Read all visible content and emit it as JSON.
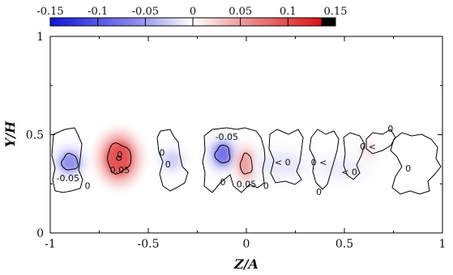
{
  "chart_data": {
    "type": "heatmap",
    "title": "",
    "xlabel": "Z/A",
    "ylabel": "Y/H",
    "xlim": [
      -1,
      1
    ],
    "ylim": [
      0,
      1
    ],
    "x_ticks": [
      -1,
      -0.5,
      0,
      0.5,
      1
    ],
    "x_tick_labels": [
      "-1",
      "-0.5",
      "0",
      "0.5",
      "1"
    ],
    "y_ticks": [
      0,
      0.5,
      1
    ],
    "y_tick_labels": [
      "0",
      "0.5",
      "1"
    ],
    "colorbar": {
      "range": [
        -0.15,
        0.15
      ],
      "ticks": [
        -0.15,
        -0.1,
        -0.05,
        0,
        0.05,
        0.1,
        0.15
      ],
      "tick_labels": [
        "-0.15",
        "-0.1",
        "-0.05",
        "0",
        "0.05",
        "0.1",
        "0.15"
      ],
      "color_min": "#1414dc",
      "color_mid": "#ffffff",
      "color_max": "#dc1414",
      "color_end": "#000000",
      "placement": "top"
    },
    "structures": [
      {
        "z": -0.9,
        "y": 0.36,
        "value": -0.07,
        "rz": 0.055,
        "ry": 0.055
      },
      {
        "z": -0.65,
        "y": 0.38,
        "value": 0.11,
        "rz": 0.08,
        "ry": 0.1
      },
      {
        "z": -0.38,
        "y": 0.37,
        "value": -0.03,
        "rz": 0.05,
        "ry": 0.05
      },
      {
        "z": -0.12,
        "y": 0.4,
        "value": -0.09,
        "rz": 0.05,
        "ry": 0.06
      },
      {
        "z": 0.0,
        "y": 0.35,
        "value": 0.07,
        "rz": 0.04,
        "ry": 0.07
      },
      {
        "z": 0.18,
        "y": 0.35,
        "value": -0.015,
        "rz": 0.12,
        "ry": 0.06
      },
      {
        "z": 0.48,
        "y": 0.33,
        "value": -0.012,
        "rz": 0.12,
        "ry": 0.05
      },
      {
        "z": 0.62,
        "y": 0.42,
        "value": 0.015,
        "rz": 0.05,
        "ry": 0.04
      }
    ],
    "contour_labels": [
      {
        "text": "-0.05",
        "z": -0.91,
        "y": 0.28
      },
      {
        "text": "0",
        "z": -0.81,
        "y": 0.24
      },
      {
        "text": "0.05",
        "z": -0.645,
        "y": 0.32
      },
      {
        "text": "0",
        "z": -0.645,
        "y": 0.4
      },
      {
        "text": "0",
        "z": -0.43,
        "y": 0.41
      },
      {
        "text": "0",
        "z": -0.4,
        "y": 0.35
      },
      {
        "text": "-0.05",
        "z": -0.1,
        "y": 0.49
      },
      {
        "text": "0",
        "z": -0.12,
        "y": 0.26
      },
      {
        "text": "0",
        "z": 0.1,
        "y": 0.24
      },
      {
        "text": "0.05",
        "z": 0.0,
        "y": 0.25
      },
      {
        "text": "< 0",
        "z": 0.185,
        "y": 0.36
      },
      {
        "text": "0 <",
        "z": 0.37,
        "y": 0.36
      },
      {
        "text": "< 0",
        "z": 0.525,
        "y": 0.31
      },
      {
        "text": "0 <",
        "z": 0.62,
        "y": 0.44
      },
      {
        "text": "0",
        "z": 0.37,
        "y": 0.21
      },
      {
        "text": "0",
        "z": 0.735,
        "y": 0.53
      },
      {
        "text": "0",
        "z": 0.825,
        "y": 0.33
      }
    ]
  }
}
